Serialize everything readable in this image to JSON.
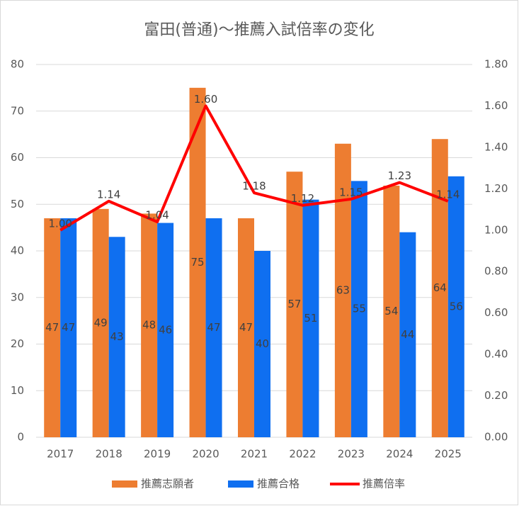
{
  "chart_data": {
    "type": "bar",
    "title": "富田(普通)〜推薦入試倍率の変化",
    "categories": [
      "2017",
      "2018",
      "2019",
      "2020",
      "2021",
      "2022",
      "2023",
      "2024",
      "2025"
    ],
    "series": [
      {
        "name": "推薦志願者",
        "type": "bar",
        "color": "#ed7d31",
        "values": [
          47,
          49,
          48,
          75,
          47,
          57,
          63,
          54,
          64
        ]
      },
      {
        "name": "推薦合格",
        "type": "bar",
        "color": "#0f6ff0",
        "values": [
          47,
          43,
          46,
          47,
          40,
          51,
          55,
          44,
          56
        ]
      },
      {
        "name": "推薦倍率",
        "type": "line",
        "axis": "y2",
        "color": "#ff0000",
        "values": [
          1.0,
          1.14,
          1.04,
          1.6,
          1.18,
          1.12,
          1.15,
          1.23,
          1.14
        ],
        "value_labels": [
          "1.00",
          "1.14",
          "1.04",
          "1.60",
          "1.18",
          "1.12",
          "1.15",
          "1.23",
          "1.14"
        ]
      }
    ],
    "ylim": [
      0,
      80
    ],
    "yticks": [
      0,
      10,
      20,
      30,
      40,
      50,
      60,
      70,
      80
    ],
    "y2lim": [
      0,
      1.8
    ],
    "y2ticks": [
      {
        "value": 0,
        "label": "0.00"
      },
      {
        "value": 0.2,
        "label": "0.20"
      },
      {
        "value": 0.4,
        "label": "0.40"
      },
      {
        "value": 0.6,
        "label": "0.60"
      },
      {
        "value": 0.8,
        "label": "0.80"
      },
      {
        "value": 1,
        "label": "1.00"
      },
      {
        "value": 1.2,
        "label": "1.20"
      },
      {
        "value": 1.4,
        "label": "1.40"
      },
      {
        "value": 1.6,
        "label": "1.60"
      },
      {
        "value": 1.8,
        "label": "1.80"
      }
    ],
    "grid": true,
    "legend": "bottom"
  }
}
